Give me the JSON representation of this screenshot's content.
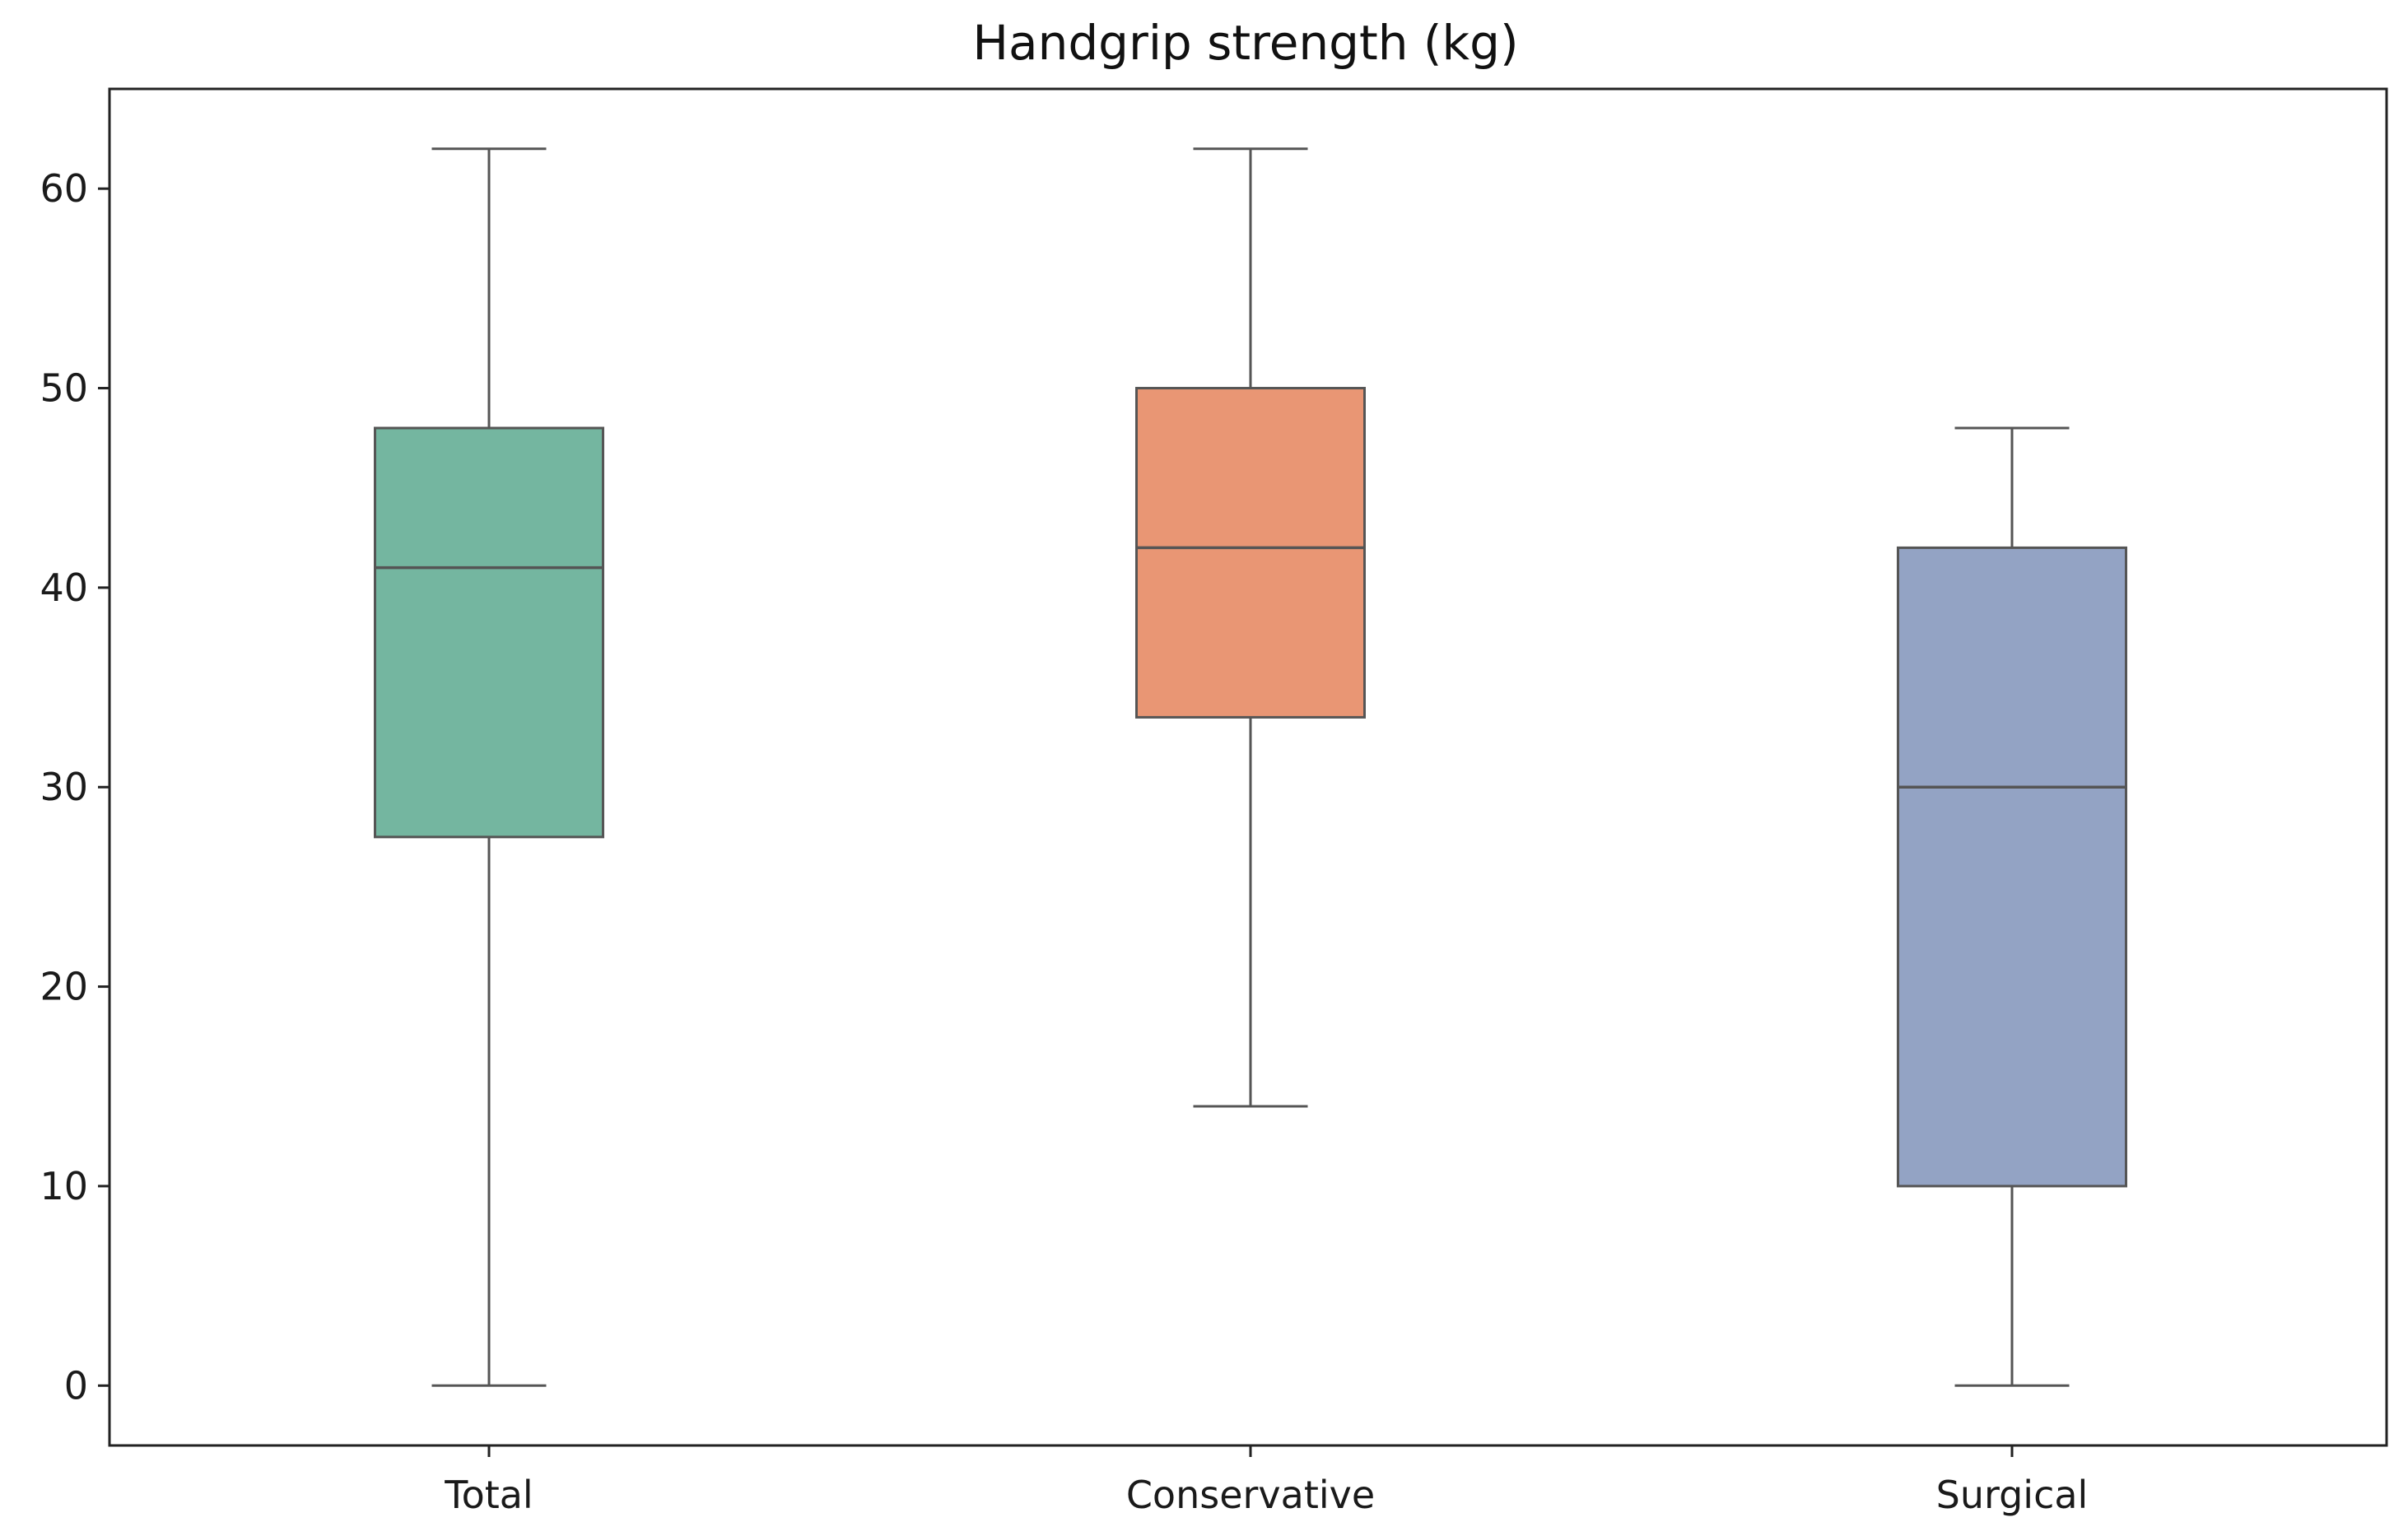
{
  "chart_data": {
    "type": "box",
    "title": "Handgrip strength (kg)",
    "xlabel": "",
    "ylabel": "",
    "categories": [
      "Total",
      "Conservative",
      "Surgical"
    ],
    "ylim": [
      -3,
      65
    ],
    "yticks": [
      0,
      10,
      20,
      30,
      40,
      50,
      60
    ],
    "grid": false,
    "boxes": [
      {
        "category": "Total",
        "whisker_low": 0,
        "q1": 27.5,
        "median": 41,
        "q3": 48,
        "whisker_high": 62,
        "color": "#74b6a0"
      },
      {
        "category": "Conservative",
        "whisker_low": 14,
        "q1": 33.5,
        "median": 42,
        "q3": 50,
        "whisker_high": 62,
        "color": "#e99674"
      },
      {
        "category": "Surgical",
        "whisker_low": 0,
        "q1": 10,
        "median": 30,
        "q3": 42,
        "whisker_high": 48,
        "color": "#93a3c4"
      }
    ],
    "line_color": "#555555"
  }
}
